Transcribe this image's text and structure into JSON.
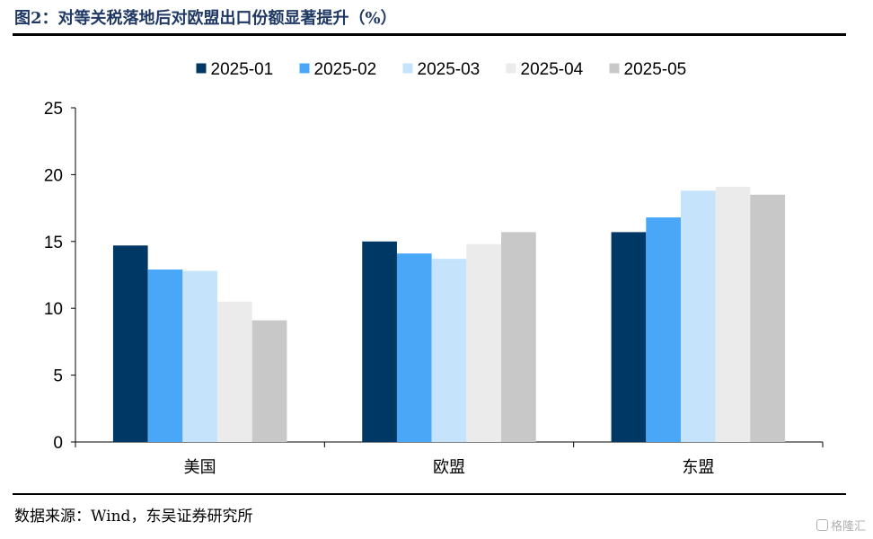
{
  "header": {
    "title": "图2：对等关税落地后对欧盟出口份额显著提升（%）"
  },
  "footer": {
    "source": "数据来源：Wind，东吴证券研究所"
  },
  "watermark": {
    "text": "格隆汇",
    "icon": "gelonghui-logo-icon"
  },
  "chart_data": {
    "type": "bar",
    "categories": [
      "美国",
      "欧盟",
      "东盟"
    ],
    "series": [
      {
        "name": "2025-01",
        "color": "#003865",
        "values": [
          14.7,
          15.0,
          15.7
        ]
      },
      {
        "name": "2025-02",
        "color": "#4aa7f7",
        "values": [
          12.9,
          14.1,
          16.8
        ]
      },
      {
        "name": "2025-03",
        "color": "#c5e3fa",
        "values": [
          12.8,
          13.7,
          18.8
        ]
      },
      {
        "name": "2025-04",
        "color": "#ebebeb",
        "values": [
          10.5,
          14.8,
          19.1
        ]
      },
      {
        "name": "2025-05",
        "color": "#c8c8c8",
        "values": [
          9.1,
          15.7,
          18.5
        ]
      }
    ],
    "ylim": [
      0,
      25
    ],
    "yticks": [
      0,
      5,
      10,
      15,
      20,
      25
    ],
    "grid": false,
    "legend_position": "top"
  }
}
